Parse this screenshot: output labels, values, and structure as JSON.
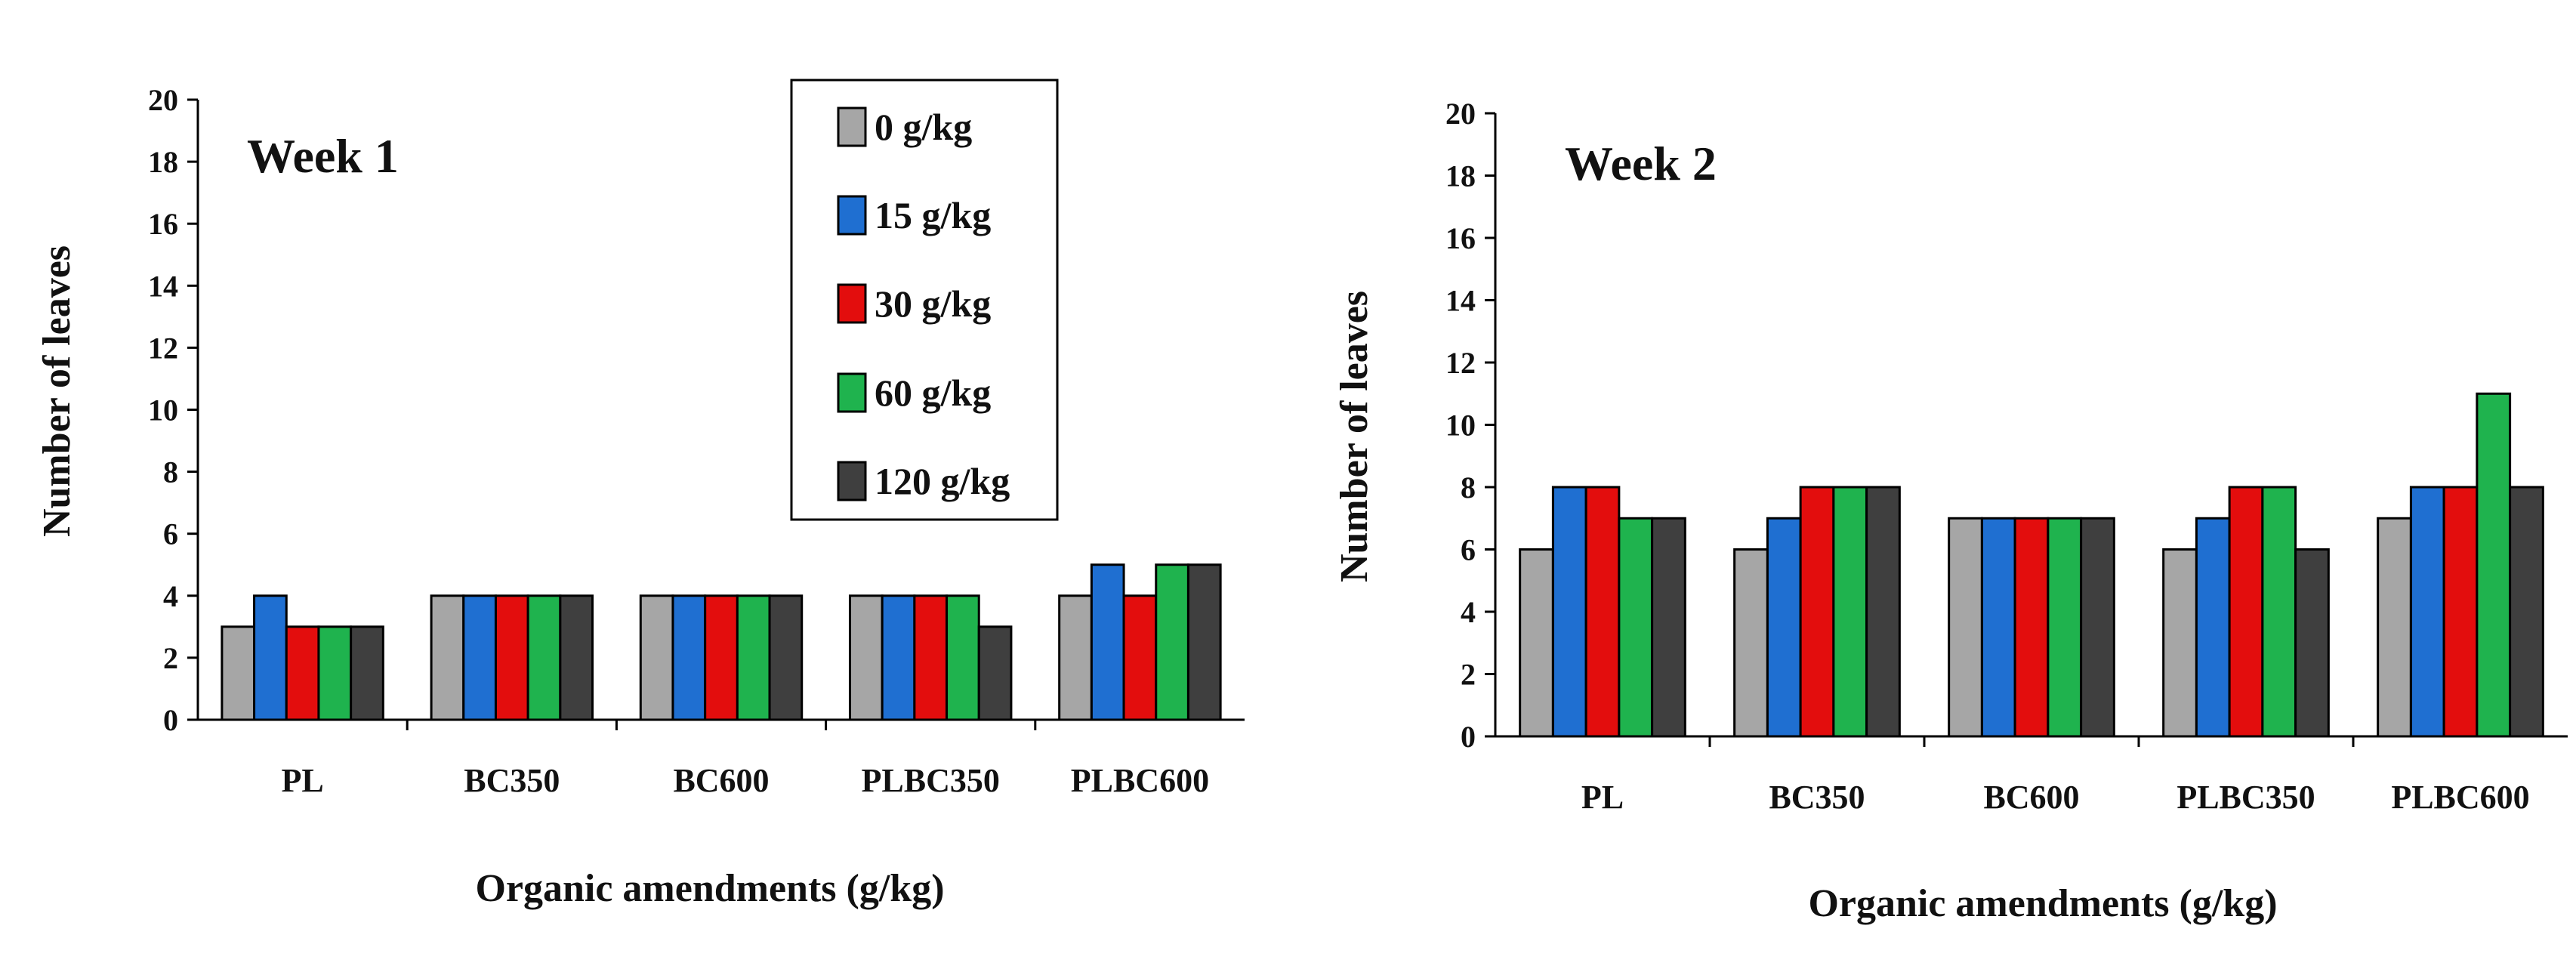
{
  "chart_data": [
    {
      "type": "bar",
      "title": "Week 1",
      "xlabel": "Organic amendments (g/kg)",
      "ylabel": "Number of leaves",
      "ylim": [
        0,
        20
      ],
      "yticks": [
        "0",
        "2",
        "4",
        "6",
        "8",
        "10",
        "12",
        "14",
        "16",
        "18",
        "20"
      ],
      "categories": [
        "PL",
        "BC350",
        "BC600",
        "PLBC350",
        "PLBC600"
      ],
      "legend_position": "top-right",
      "series": [
        {
          "name": "0 g/kg",
          "color": "#a6a6a6",
          "values": [
            3,
            4,
            4,
            4,
            4
          ]
        },
        {
          "name": "15 g/kg",
          "color": "#1f6fd1",
          "values": [
            4,
            4,
            4,
            4,
            5
          ]
        },
        {
          "name": "30 g/kg",
          "color": "#e30d0d",
          "values": [
            3,
            4,
            4,
            4,
            4
          ]
        },
        {
          "name": "60 g/kg",
          "color": "#1fb34e",
          "values": [
            3,
            4,
            4,
            4,
            5
          ]
        },
        {
          "name": "120 g/kg",
          "color": "#3f3f3f",
          "values": [
            3,
            4,
            4,
            3,
            5
          ]
        }
      ]
    },
    {
      "type": "bar",
      "title": "Week 2",
      "xlabel": "Organic amendments (g/kg)",
      "ylabel": "Number of leaves",
      "ylim": [
        0,
        20
      ],
      "yticks": [
        "0",
        "2",
        "4",
        "6",
        "8",
        "10",
        "12",
        "14",
        "16",
        "18",
        "20"
      ],
      "categories": [
        "PL",
        "BC350",
        "BC600",
        "PLBC350",
        "PLBC600"
      ],
      "series": [
        {
          "name": "0 g/kg",
          "color": "#a6a6a6",
          "values": [
            6,
            6,
            7,
            6,
            7
          ]
        },
        {
          "name": "15 g/kg",
          "color": "#1f6fd1",
          "values": [
            8,
            7,
            7,
            7,
            8
          ]
        },
        {
          "name": "30 g/kg",
          "color": "#e30d0d",
          "values": [
            8,
            8,
            7,
            8,
            8
          ]
        },
        {
          "name": "60 g/kg",
          "color": "#1fb34e",
          "values": [
            7,
            8,
            7,
            8,
            11
          ]
        },
        {
          "name": "120 g/kg",
          "color": "#3f3f3f",
          "values": [
            7,
            8,
            7,
            6,
            8
          ]
        }
      ]
    }
  ]
}
